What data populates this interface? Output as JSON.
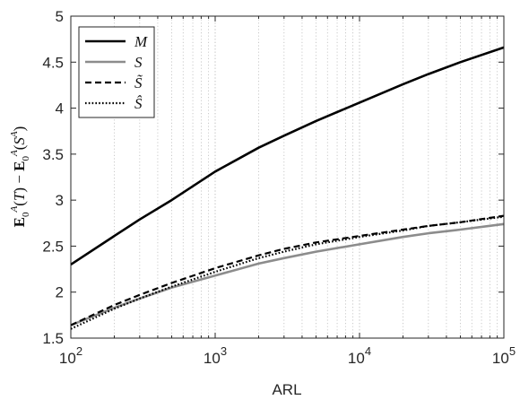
{
  "chart_data": {
    "type": "line",
    "xlabel": "ARL",
    "ylabel": "E₀ᴬ(T) − E₀ᴬ(Sᴬ)",
    "x_scale": "log",
    "xlim": [
      100,
      100000
    ],
    "ylim": [
      1.5,
      5
    ],
    "x_ticks": [
      {
        "value": 100,
        "base": "10",
        "exp": "2"
      },
      {
        "value": 1000,
        "base": "10",
        "exp": "3"
      },
      {
        "value": 10000,
        "base": "10",
        "exp": "4"
      },
      {
        "value": 100000,
        "base": "10",
        "exp": "5"
      }
    ],
    "y_ticks": [
      "1.5",
      "2",
      "2.5",
      "3",
      "3.5",
      "4",
      "4.5",
      "5"
    ],
    "grid": "vertical minor dotted",
    "legend_position": "top-left",
    "x": [
      100,
      200,
      300,
      500,
      1000,
      2000,
      3000,
      5000,
      10000,
      20000,
      30000,
      50000,
      100000
    ],
    "series": [
      {
        "name": "M",
        "color": "#000000",
        "style": "solid",
        "width": 2.6,
        "values": [
          2.3,
          2.61,
          2.79,
          3.0,
          3.31,
          3.57,
          3.7,
          3.86,
          4.06,
          4.26,
          4.37,
          4.5,
          4.66
        ]
      },
      {
        "name": "S",
        "color": "#8c8c8c",
        "style": "solid",
        "width": 2.6,
        "values": [
          1.64,
          1.83,
          1.93,
          2.05,
          2.18,
          2.31,
          2.37,
          2.44,
          2.52,
          2.6,
          2.64,
          2.68,
          2.74
        ]
      },
      {
        "name": "S̃",
        "color": "#000000",
        "style": "dashed",
        "width": 2.2,
        "values": [
          1.64,
          1.86,
          1.97,
          2.1,
          2.26,
          2.4,
          2.47,
          2.54,
          2.61,
          2.68,
          2.72,
          2.76,
          2.83
        ]
      },
      {
        "name": "Ŝ",
        "color": "#000000",
        "style": "dotted",
        "width": 2.2,
        "values": [
          1.6,
          1.82,
          1.93,
          2.06,
          2.22,
          2.37,
          2.44,
          2.52,
          2.6,
          2.67,
          2.72,
          2.76,
          2.82
        ]
      }
    ]
  }
}
